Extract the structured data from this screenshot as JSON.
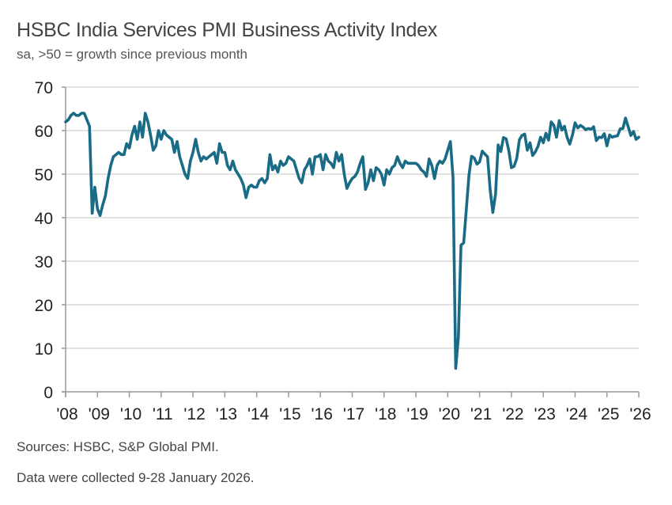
{
  "chart_data": {
    "type": "line",
    "title": "HSBC India Services PMI Business Activity Index",
    "subtitle": "sa, >50 = growth since previous month",
    "xlabel": "",
    "ylabel": "",
    "ylim": [
      0,
      70
    ],
    "yticks": [
      "0",
      "10",
      "20",
      "30",
      "40",
      "50",
      "60",
      "70"
    ],
    "xticks": [
      "'08",
      "'09",
      "'10",
      "'11",
      "'12",
      "'13",
      "'14",
      "'15",
      "'16",
      "'17",
      "'18",
      "'19",
      "'20",
      "'21",
      "'22",
      "'23",
      "'24",
      "'25",
      "'26"
    ],
    "grid": "horizontal",
    "line_color": "#1a6b86",
    "start_month": "2008-01",
    "frequency": "monthly",
    "values": [
      62,
      62.5,
      63.5,
      64,
      63.5,
      63.5,
      64,
      64,
      62.5,
      61,
      41,
      47,
      42,
      40.5,
      43,
      45,
      49,
      52,
      54,
      54.5,
      55,
      54.5,
      54.5,
      57,
      56,
      59,
      61,
      58,
      62,
      58.5,
      64,
      62,
      59,
      55.5,
      56.5,
      60,
      58,
      60,
      59,
      58.5,
      58,
      55,
      57.5,
      54,
      52,
      50,
      49,
      53,
      55,
      58,
      55,
      53,
      54,
      53.5,
      54,
      54.5,
      55,
      52.5,
      57,
      55,
      55,
      52,
      51,
      53,
      51,
      50,
      49,
      47.5,
      44.6,
      47,
      47.5,
      47,
      47,
      48.5,
      49,
      48,
      49,
      54.5,
      51,
      52,
      50.5,
      53,
      52,
      52.5,
      54,
      53.5,
      53,
      51,
      49,
      48,
      51,
      52,
      53.5,
      50,
      54,
      54,
      54.5,
      51,
      54.5,
      53,
      52.5,
      51.5,
      55,
      53,
      54.5,
      50,
      46.7,
      48,
      49,
      49.5,
      50.5,
      52.5,
      54,
      46.5,
      48,
      51,
      48.5,
      51.5,
      51,
      50,
      47.5,
      51,
      50,
      51.5,
      52,
      54,
      52.5,
      51.5,
      53,
      52.5,
      52.5,
      52.5,
      52.5,
      52,
      51,
      50.5,
      49.5,
      53.5,
      52,
      49,
      52,
      53,
      52.5,
      53.5,
      55.5,
      57.5,
      49.3,
      5.4,
      12.6,
      33.7,
      34.2,
      41.8,
      49.8,
      54.1,
      53.7,
      52.3,
      52.8,
      55.3,
      54.6,
      54,
      46.4,
      41.2,
      45.4,
      56.7,
      55.2,
      58.4,
      58.1,
      55.5,
      51.5,
      51.8,
      53.6,
      57.9,
      58.9,
      59.2,
      55.5,
      57.2,
      54.3,
      55.1,
      56.4,
      58.5,
      57.2,
      59.4,
      57.8,
      62,
      61.2,
      58.5,
      62.3,
      60.1,
      61,
      58.4,
      56.9,
      59,
      61.8,
      60.6,
      61.2,
      60.8,
      60.2,
      60.5,
      60.3,
      60.9,
      57.7,
      58.5,
      58.4,
      59.3,
      56.5,
      59,
      58.5,
      58.7,
      58.8,
      60.4,
      60.5,
      62.9,
      60.9,
      58.9,
      59.8,
      58,
      58.5
    ]
  },
  "footer": {
    "sources": "Sources: HSBC, S&P Global PMI.",
    "collection": "Data were collected 9-28 January 2026."
  }
}
